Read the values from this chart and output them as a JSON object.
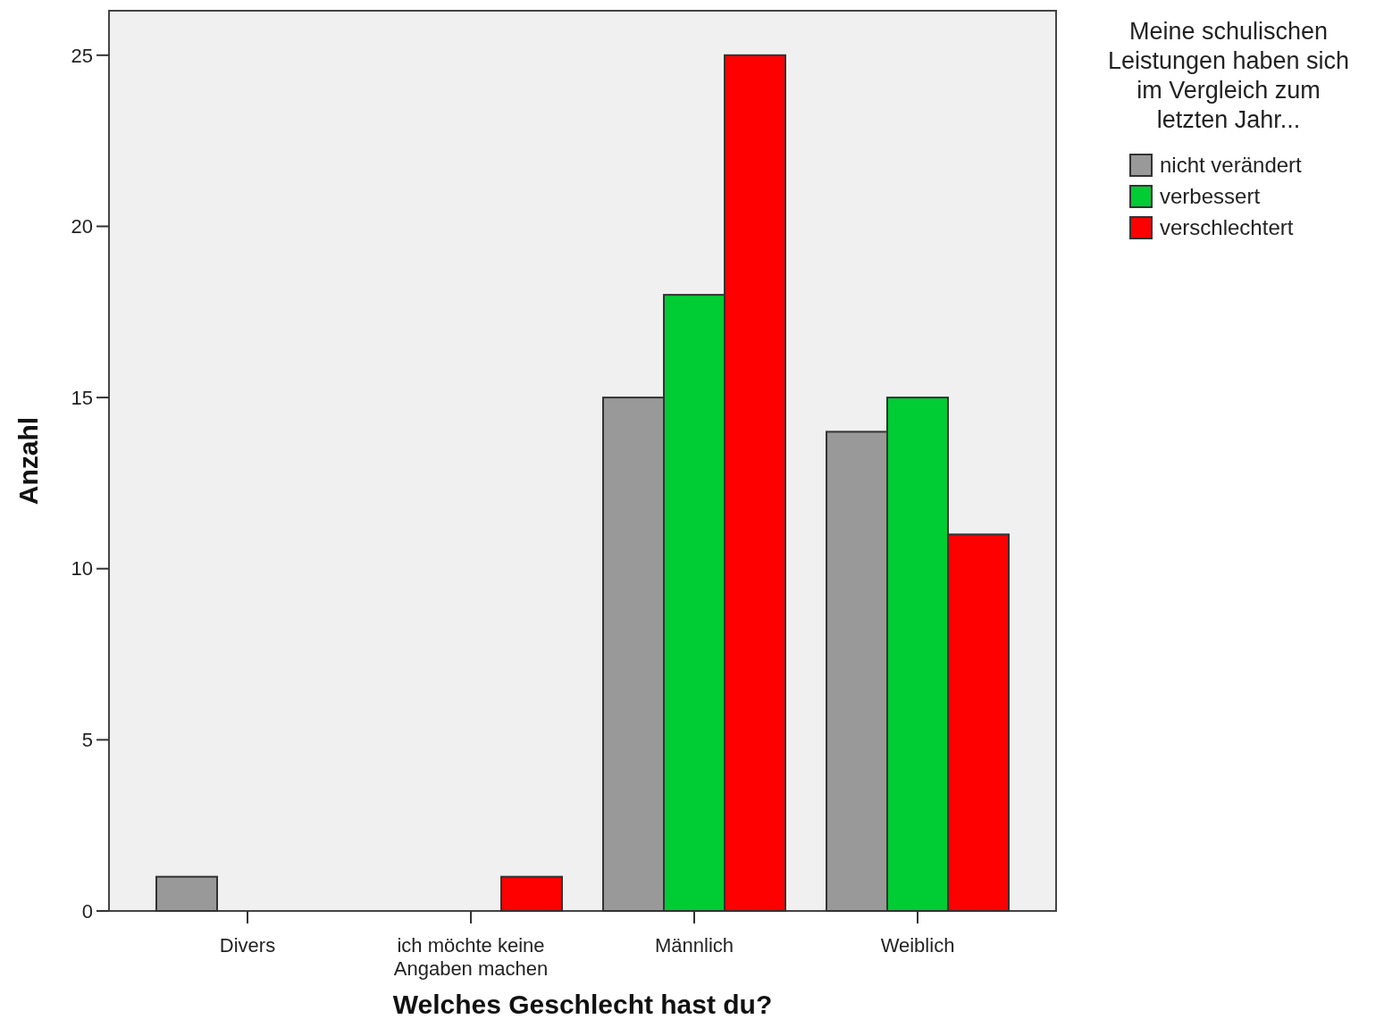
{
  "chart_data": {
    "type": "bar",
    "xlabel": "Welches Geschlecht hast du?",
    "ylabel": "Anzahl",
    "legend_title": "Meine schulischen Leistungen haben sich im Vergleich zum letzten Jahr...",
    "categories": [
      "Divers",
      "ich möchte keine Angaben machen",
      "Männlich",
      "Weiblich"
    ],
    "series": [
      {
        "name": "nicht verändert",
        "color": "#999999",
        "values": [
          1,
          null,
          15,
          14
        ]
      },
      {
        "name": "verbessert",
        "color": "#00cc33",
        "values": [
          null,
          null,
          18,
          15
        ]
      },
      {
        "name": "verschlechtert",
        "color": "#ff0000",
        "values": [
          null,
          1,
          25,
          11
        ]
      }
    ],
    "ylim": [
      0,
      26.3
    ],
    "yticks": [
      0,
      5,
      10,
      15,
      20,
      25
    ],
    "grid": false,
    "legend": "top right"
  }
}
